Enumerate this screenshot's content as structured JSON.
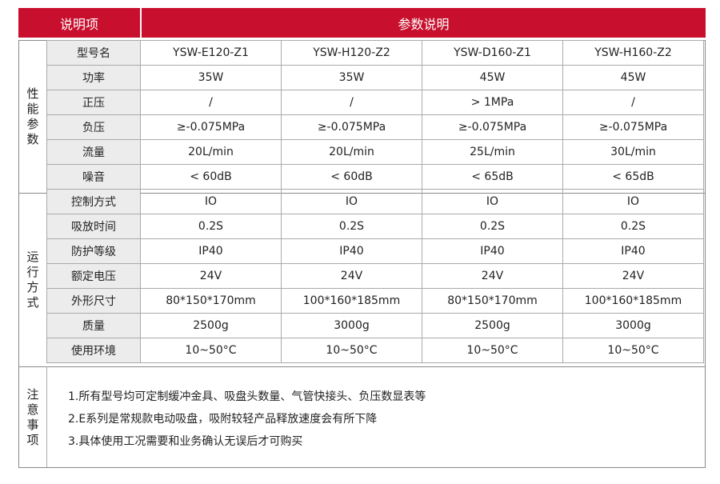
{
  "header": {
    "left_label": "说明项",
    "right_label": "参数说明"
  },
  "categories": {
    "performance": "性能参数",
    "operation": "运行方式",
    "notes": "注意事项"
  },
  "models": [
    "YSW-E120-Z1",
    "YSW-H120-Z2",
    "YSW-D160-Z1",
    "YSW-H160-Z2"
  ],
  "rows": [
    {
      "label": "型号名",
      "values": [
        "YSW-E120-Z1",
        "YSW-H120-Z2",
        "YSW-D160-Z1",
        "YSW-H160-Z2"
      ]
    },
    {
      "label": "功率",
      "values": [
        "35W",
        "35W",
        "45W",
        "45W"
      ]
    },
    {
      "label": "正压",
      "values": [
        "/",
        "/",
        "> 1MPa",
        "/"
      ]
    },
    {
      "label": "负压",
      "values": [
        "≥-0.075MPa",
        "≥-0.075MPa",
        "≥-0.075MPa",
        "≥-0.075MPa"
      ]
    },
    {
      "label": "流量",
      "values": [
        "20L/min",
        "20L/min",
        "25L/min",
        "30L/min"
      ]
    },
    {
      "label": "噪音",
      "values": [
        "< 60dB",
        "< 60dB",
        "< 65dB",
        "< 65dB"
      ]
    },
    {
      "label": "控制方式",
      "values": [
        "IO",
        "IO",
        "IO",
        "IO"
      ]
    },
    {
      "label": "吸放时间",
      "values": [
        "0.2S",
        "0.2S",
        "0.2S",
        "0.2S"
      ]
    },
    {
      "label": "防护等级",
      "values": [
        "IP40",
        "IP40",
        "IP40",
        "IP40"
      ]
    },
    {
      "label": "额定电压",
      "values": [
        "24V",
        "24V",
        "24V",
        "24V"
      ]
    },
    {
      "label": "外形尺寸",
      "values": [
        "80*150*170mm",
        "100*160*185mm",
        "80*150*170mm",
        "100*160*185mm"
      ]
    },
    {
      "label": "质量",
      "values": [
        "2500g",
        "3000g",
        "2500g",
        "3000g"
      ]
    },
    {
      "label": "使用环境",
      "values": [
        "10~50°C",
        "10~50°C",
        "10~50°C",
        "10~50°C"
      ]
    }
  ],
  "notes": [
    "1.所有型号均可定制缓冲金具、吸盘头数量、气管快接头、负压数显表等",
    "2.E系列是常规款电动吸盘，吸附较轻产品释放速度会有所下降",
    "3.具体使用工况需要和业务确认无误后才可购买"
  ],
  "colors": {
    "header_red": "#c8102e",
    "label_bg": "#ececec"
  }
}
